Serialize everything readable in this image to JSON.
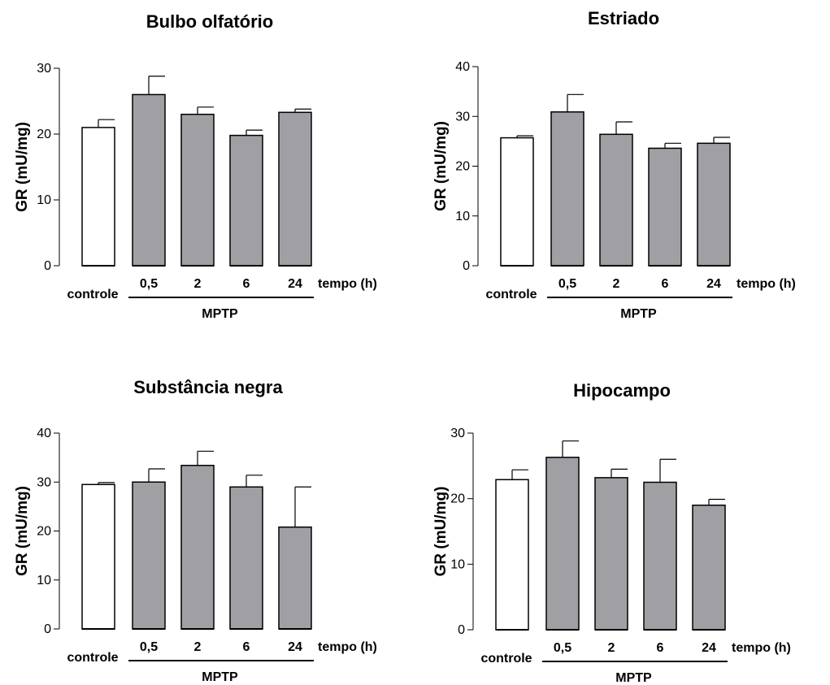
{
  "chart_data": [
    {
      "type": "bar",
      "title": "Bulbo olfatório",
      "ylabel": "GR (mU/mg)",
      "ylim": [
        0,
        30
      ],
      "yticks": [
        "0",
        "10",
        "20",
        "30"
      ],
      "control_label": "controle",
      "categories": [
        "0,5",
        "2",
        "6",
        "24"
      ],
      "xlabel": "tempo (h)",
      "group_label": "MPTP",
      "control": {
        "value": 21.0,
        "error": 1.2
      },
      "values": [
        26.0,
        23.0,
        19.8,
        23.3
      ],
      "errors": [
        2.8,
        1.1,
        0.8,
        0.5
      ],
      "colors": {
        "control": "#ffffff",
        "treated": "#a0a0a4"
      }
    },
    {
      "type": "bar",
      "title": "Estriado",
      "ylabel": "GR (mU/mg)",
      "ylim": [
        0,
        40
      ],
      "yticks": [
        "0",
        "10",
        "20",
        "30",
        "40"
      ],
      "control_label": "controle",
      "categories": [
        "0,5",
        "2",
        "6",
        "24"
      ],
      "xlabel": "tempo (h)",
      "group_label": "MPTP",
      "control": {
        "value": 25.7,
        "error": 0.4
      },
      "values": [
        30.9,
        26.4,
        23.6,
        24.6
      ],
      "errors": [
        3.5,
        2.5,
        1.0,
        1.2
      ],
      "colors": {
        "control": "#ffffff",
        "treated": "#a0a0a4"
      }
    },
    {
      "type": "bar",
      "title": "Substância negra",
      "ylabel": "GR (mU/mg)",
      "ylim": [
        0,
        40
      ],
      "yticks": [
        "0",
        "10",
        "20",
        "30",
        "40"
      ],
      "control_label": "controle",
      "categories": [
        "0,5",
        "2",
        "6",
        "24"
      ],
      "xlabel": "tempo (h)",
      "group_label": "MPTP",
      "control": {
        "value": 29.5,
        "error": 0.4
      },
      "values": [
        30.0,
        33.4,
        29.0,
        20.8
      ],
      "errors": [
        2.7,
        2.9,
        2.4,
        8.2
      ],
      "colors": {
        "control": "#ffffff",
        "treated": "#a0a0a4"
      }
    },
    {
      "type": "bar",
      "title": "Hipocampo",
      "ylabel": "GR (mU/mg)",
      "ylim": [
        0,
        30
      ],
      "yticks": [
        "0",
        "10",
        "20",
        "30"
      ],
      "control_label": "controle",
      "categories": [
        "0,5",
        "2",
        "6",
        "24"
      ],
      "xlabel": "tempo (h)",
      "group_label": "MPTP",
      "control": {
        "value": 22.9,
        "error": 1.5
      },
      "values": [
        26.3,
        23.2,
        22.5,
        19.0
      ],
      "errors": [
        2.5,
        1.3,
        3.5,
        0.9
      ],
      "colors": {
        "control": "#ffffff",
        "treated": "#a0a0a4"
      }
    }
  ]
}
